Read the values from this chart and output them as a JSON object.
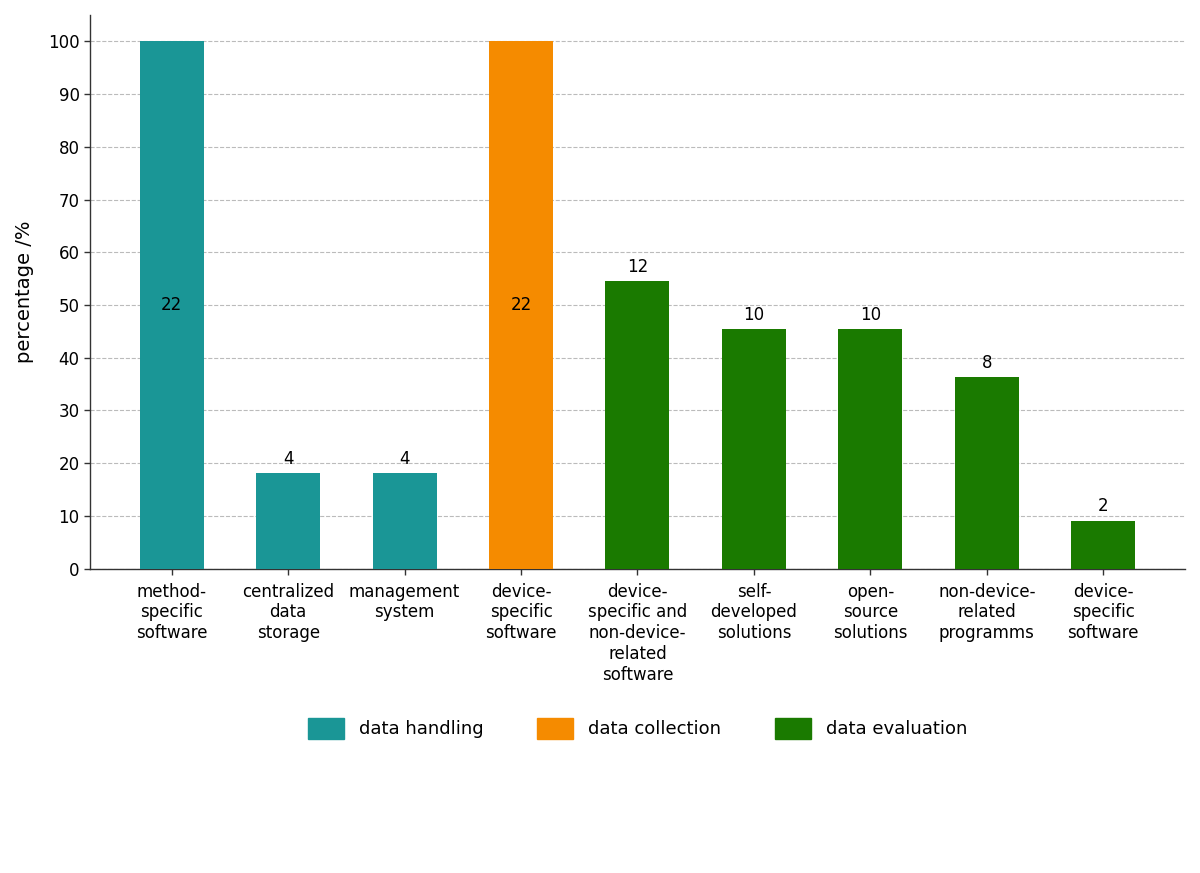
{
  "categories": [
    "method-\nspecific\nsoftware",
    "centralized\ndata\nstorage",
    "management\nsystem",
    "device-\nspecific\nsoftware",
    "device-\nspecific and\nnon-device-\nrelated\nsoftware",
    "self-\ndeveloped\nsolutions",
    "open-\nsource\nsolutions",
    "non-device-\nrelated\nprogramms",
    "device-\nspecific\nsoftware"
  ],
  "values": [
    100,
    18.18,
    18.18,
    100,
    54.55,
    45.45,
    45.45,
    36.36,
    9.09
  ],
  "absolute_values": [
    22,
    4,
    4,
    22,
    12,
    10,
    10,
    8,
    2
  ],
  "label_inside": [
    true,
    false,
    false,
    true,
    false,
    false,
    false,
    false,
    false
  ],
  "label_inside_y": [
    50,
    0,
    0,
    50,
    0,
    0,
    0,
    0,
    0
  ],
  "colors": [
    "#1A9696",
    "#1A9696",
    "#1A9696",
    "#F58B00",
    "#1A7A00",
    "#1A7A00",
    "#1A7A00",
    "#1A7A00",
    "#1A7A00"
  ],
  "ylabel": "percentage /%",
  "ylim": [
    0,
    105
  ],
  "yticks": [
    0,
    10,
    20,
    30,
    40,
    50,
    60,
    70,
    80,
    90,
    100
  ],
  "legend_labels": [
    "data handling",
    "data collection",
    "data evaluation"
  ],
  "legend_colors": [
    "#1A9696",
    "#F58B00",
    "#1A7A00"
  ],
  "bar_width": 0.55,
  "tick_fontsize": 12,
  "ylabel_fontsize": 14,
  "annot_fontsize": 12,
  "background_color": "#ffffff",
  "grid_color": "#bbbbbb"
}
